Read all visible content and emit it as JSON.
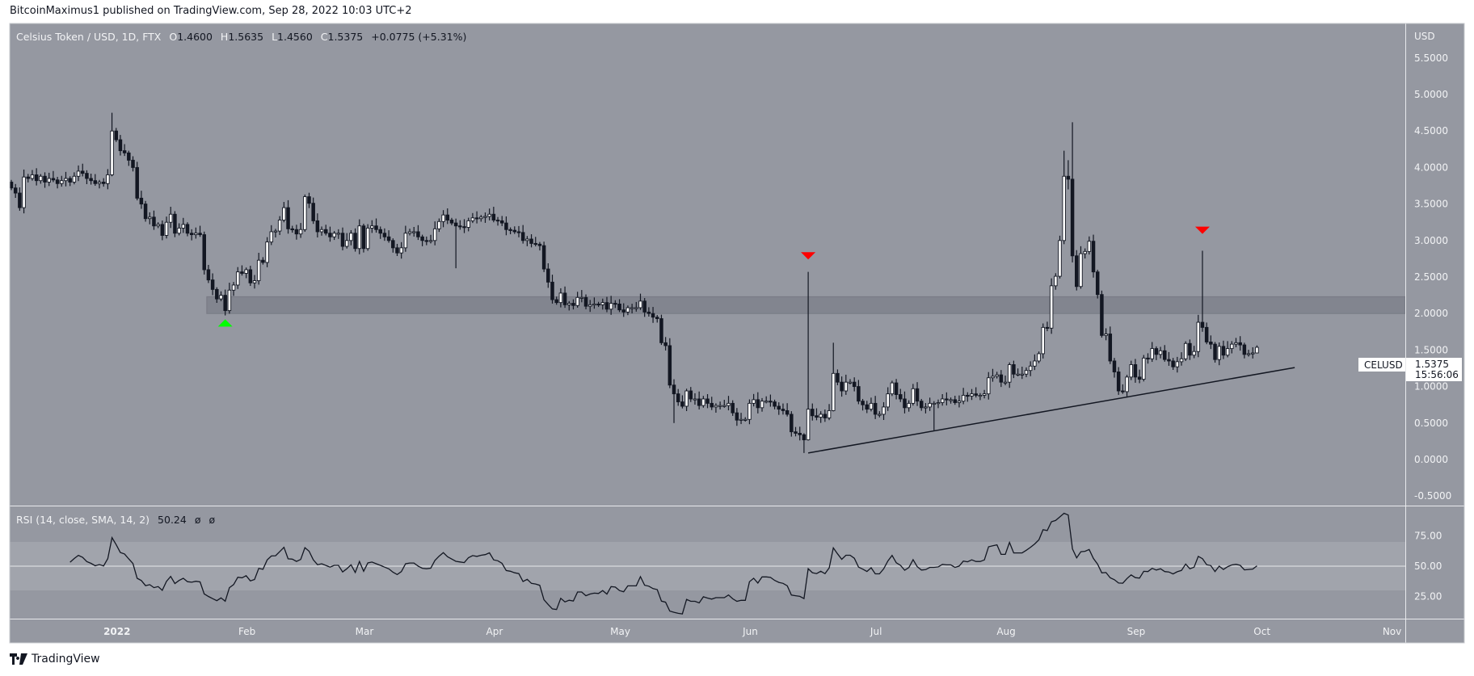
{
  "published": "BitcoinMaximus1 published on TradingView.com, Sep 28, 2022 10:03 UTC+2",
  "legend": {
    "symbol": "Celsius Token / USD, 1D, FTX",
    "o_label": "O",
    "o": "1.4600",
    "h_label": "H",
    "h": "1.5635",
    "l_label": "L",
    "l": "1.4560",
    "c_label": "C",
    "c": "1.5375",
    "change": "+0.0775 (+5.31%)"
  },
  "rsi_legend": {
    "label": "RSI (14, close, SMA, 14, 2)",
    "value": "50.24",
    "extra1": "ø",
    "extra2": "ø"
  },
  "price_tag": {
    "symbol": "CELUSD",
    "price": "1.5375",
    "countdown": "15:56:06"
  },
  "currency": "USD",
  "brand": "TradingView",
  "colors": {
    "background": "#9598a1",
    "zone": "#82858f",
    "rsi_band": "#a1a4ac",
    "up_marker": "#00ff00",
    "down_marker": "#ff0000",
    "bear": "#131722",
    "bull": "#ffffff"
  },
  "chart_data": [
    {
      "type": "candlestick",
      "title": "Celsius Token / USD, 1D, FTX",
      "x_unit": "daily candle index",
      "ylabel": "USD",
      "ylim": [
        -0.63,
        5.97
      ],
      "y_ticks": [
        "5.5000",
        "5.0000",
        "4.5000",
        "4.0000",
        "3.5000",
        "3.0000",
        "2.5000",
        "2.0000",
        "1.5000",
        "1.0000",
        "0.5000",
        "0.0000",
        "-0.5000"
      ],
      "x_ticks": [
        {
          "label": "2022",
          "index": 25.2,
          "bold": true
        },
        {
          "label": "Feb",
          "index": 56.2
        },
        {
          "label": "Mar",
          "index": 84.2
        },
        {
          "label": "Apr",
          "index": 115.2
        },
        {
          "label": "May",
          "index": 145.2
        },
        {
          "label": "Jun",
          "index": 176.2
        },
        {
          "label": "Jul",
          "index": 206.2
        },
        {
          "label": "Aug",
          "index": 237.2
        },
        {
          "label": "Sep",
          "index": 268.2
        },
        {
          "label": "Oct",
          "index": 298.2
        },
        {
          "label": "Nov",
          "index": 329.2
        }
      ],
      "first_open": 3.8,
      "closes": [
        3.72,
        3.65,
        3.45,
        3.87,
        3.85,
        3.9,
        3.82,
        3.88,
        3.8,
        3.85,
        3.83,
        3.78,
        3.82,
        3.85,
        3.8,
        3.88,
        3.95,
        3.92,
        3.85,
        3.82,
        3.78,
        3.8,
        3.78,
        3.9,
        4.5,
        4.38,
        4.23,
        4.2,
        4.1,
        4.0,
        3.58,
        3.5,
        3.3,
        3.32,
        3.2,
        3.22,
        3.07,
        3.25,
        3.36,
        3.1,
        3.17,
        3.22,
        3.1,
        3.08,
        3.1,
        3.08,
        2.6,
        2.46,
        2.33,
        2.2,
        2.25,
        2.04,
        2.32,
        2.39,
        2.57,
        2.55,
        2.6,
        2.42,
        2.45,
        2.73,
        2.7,
        2.98,
        3.12,
        3.13,
        3.28,
        3.45,
        3.16,
        3.15,
        3.09,
        3.15,
        3.6,
        3.51,
        3.27,
        3.12,
        3.15,
        3.1,
        3.05,
        3.1,
        3.1,
        2.92,
        3.0,
        3.1,
        2.89,
        3.2,
        2.89,
        3.17,
        3.2,
        3.15,
        3.1,
        3.05,
        3.0,
        2.9,
        2.83,
        2.9,
        3.1,
        3.12,
        3.12,
        3.05,
        3.0,
        2.99,
        3.0,
        3.16,
        3.26,
        3.35,
        3.28,
        3.24,
        3.2,
        3.19,
        3.18,
        3.27,
        3.31,
        3.3,
        3.32,
        3.33,
        3.36,
        3.28,
        3.27,
        3.24,
        3.15,
        3.14,
        3.12,
        3.11,
        3.0,
        3.02,
        2.96,
        2.95,
        2.93,
        2.61,
        2.43,
        2.19,
        2.15,
        2.28,
        2.12,
        2.14,
        2.11,
        2.22,
        2.22,
        2.1,
        2.12,
        2.13,
        2.12,
        2.15,
        2.06,
        2.14,
        2.13,
        2.05,
        2.02,
        2.08,
        2.08,
        2.08,
        2.17,
        2.02,
        2.0,
        1.95,
        1.93,
        1.6,
        1.56,
        1.02,
        0.9,
        0.79,
        0.73,
        0.94,
        0.83,
        0.83,
        0.74,
        0.83,
        0.77,
        0.72,
        0.74,
        0.74,
        0.74,
        0.77,
        0.64,
        0.54,
        0.55,
        0.55,
        0.77,
        0.82,
        0.71,
        0.8,
        0.8,
        0.79,
        0.73,
        0.69,
        0.67,
        0.62,
        0.38,
        0.36,
        0.34,
        0.27,
        0.69,
        0.6,
        0.58,
        0.62,
        0.57,
        0.67,
        1.18,
        1.06,
        0.94,
        1.06,
        1.06,
        1.0,
        0.8,
        0.75,
        0.69,
        0.77,
        0.62,
        0.62,
        0.72,
        0.9,
        1.05,
        0.89,
        0.83,
        0.71,
        0.77,
        0.97,
        0.8,
        0.71,
        0.72,
        0.77,
        0.77,
        0.78,
        0.83,
        0.82,
        0.82,
        0.78,
        0.8,
        0.88,
        0.87,
        0.9,
        0.88,
        0.88,
        0.9,
        1.12,
        1.14,
        1.16,
        1.06,
        1.06,
        1.3,
        1.17,
        1.17,
        1.17,
        1.22,
        1.28,
        1.35,
        1.45,
        1.81,
        1.8,
        2.38,
        2.51,
        3.0,
        3.88,
        3.84,
        2.79,
        2.37,
        2.82,
        2.85,
        2.99,
        2.57,
        2.26,
        1.7,
        1.72,
        1.35,
        1.2,
        0.94,
        0.93,
        1.13,
        1.3,
        1.13,
        1.1,
        1.39,
        1.38,
        1.52,
        1.44,
        1.49,
        1.37,
        1.35,
        1.27,
        1.34,
        1.38,
        1.59,
        1.43,
        1.48,
        1.88,
        1.81,
        1.61,
        1.58,
        1.37,
        1.55,
        1.43,
        1.52,
        1.58,
        1.6,
        1.57,
        1.44,
        1.45,
        1.46,
        1.5375
      ],
      "wicks": {
        "24": [
          4.75,
          3.88
        ],
        "106": [
          3.3,
          2.62
        ],
        "158": [
          1.1,
          0.5
        ],
        "189": [
          0.36,
          0.09
        ],
        "190": [
          2.57,
          0.26
        ],
        "196": [
          1.6,
          0.66
        ],
        "220": [
          0.8,
          0.4
        ],
        "251": [
          4.23,
          2.95
        ],
        "252": [
          4.1,
          3.7
        ],
        "253": [
          4.62,
          2.7
        ],
        "284": [
          2.86,
          1.75
        ],
        "297": [
          1.5635,
          1.456
        ]
      },
      "support_zone": {
        "from_index": 46.6,
        "low": 2.0,
        "high": 2.23
      },
      "trendline": [
        {
          "index": 190,
          "price": 0.09
        },
        {
          "index": 306,
          "price": 1.26
        }
      ],
      "markers": [
        {
          "type": "up",
          "index": 51,
          "price": 1.92,
          "color": "#00ff00"
        },
        {
          "type": "down",
          "index": 190,
          "price": 2.74,
          "color": "#ff0000"
        },
        {
          "type": "down",
          "index": 284,
          "price": 3.09,
          "color": "#ff0000"
        }
      ]
    },
    {
      "type": "line",
      "title": "RSI (14, close, SMA, 14, 2)",
      "period": 14,
      "ylim": [
        6.7,
        99
      ],
      "y_ticks": [
        "75.00",
        "50.00",
        "25.00"
      ],
      "band": [
        30,
        70
      ],
      "midline": 50,
      "last_value": 50.24
    }
  ]
}
